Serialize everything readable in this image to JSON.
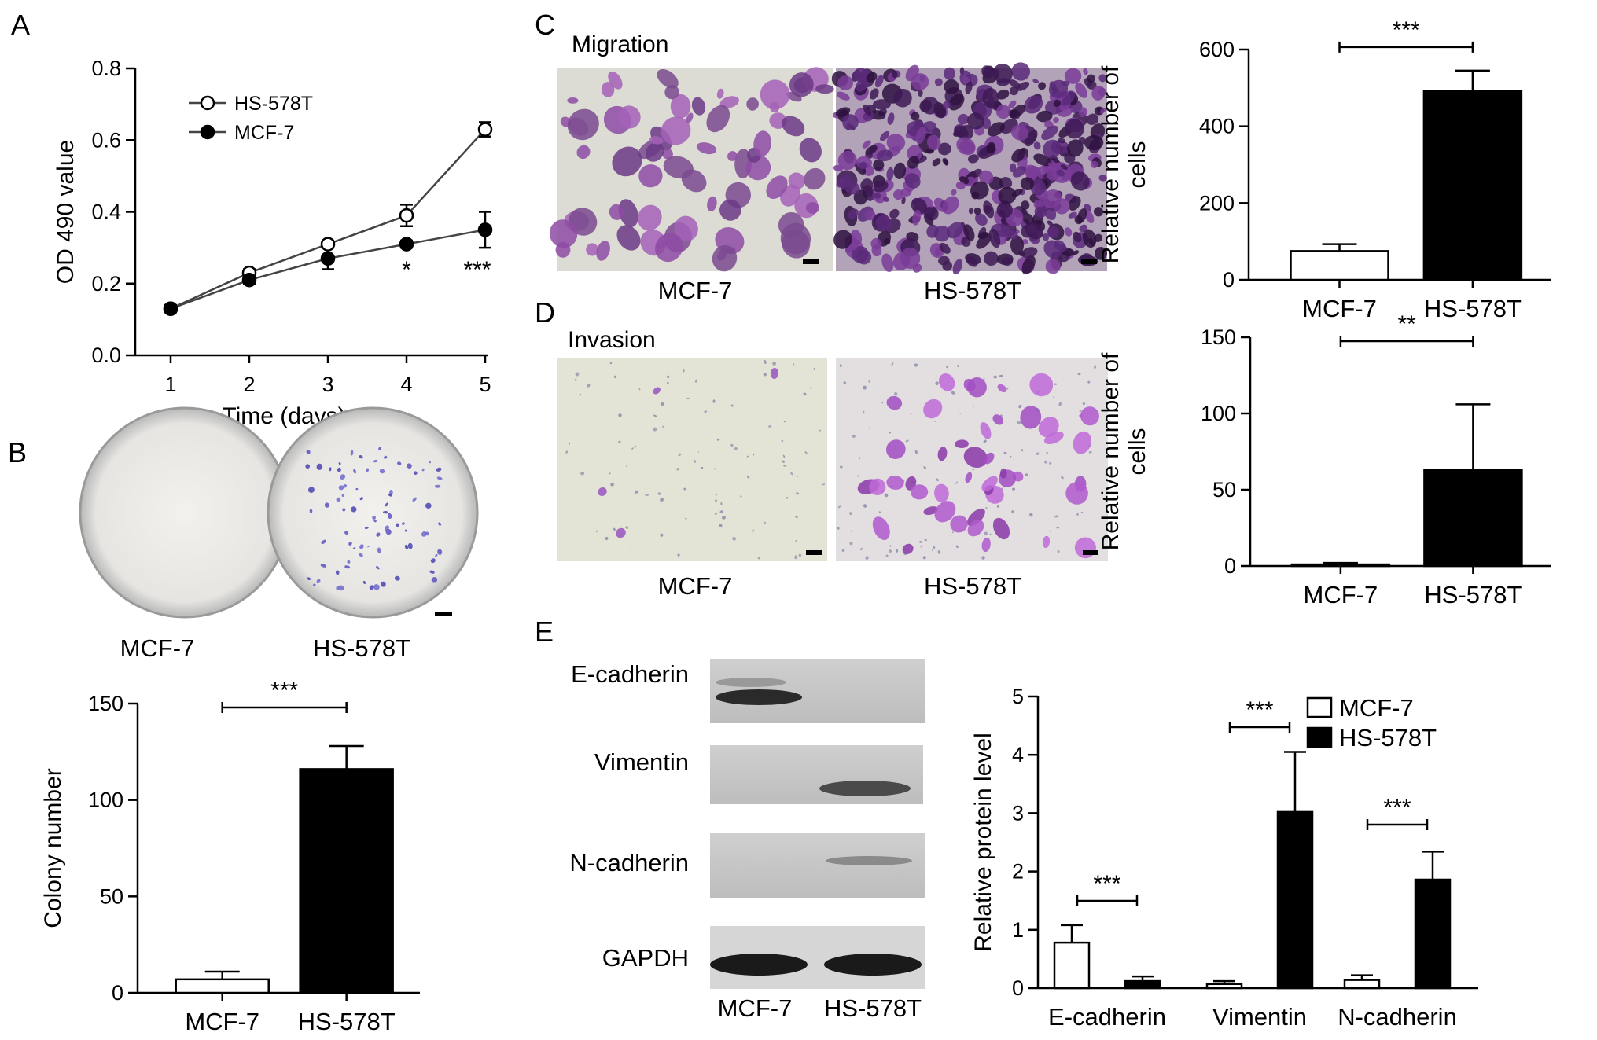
{
  "panels": {
    "A": {
      "label": "A"
    },
    "B": {
      "label": "B",
      "plate_labels": [
        "MCF-7",
        "HS-578T"
      ]
    },
    "C": {
      "label": "C",
      "title": "Migration",
      "image_labels": [
        "MCF-7",
        "HS-578T"
      ]
    },
    "D": {
      "label": "D",
      "title": "Invasion",
      "image_labels": [
        "MCF-7",
        "HS-578T"
      ]
    },
    "E": {
      "label": "E",
      "blot_rows": [
        "E-cadherin",
        "Vimentin",
        "N-cadherin",
        "GAPDH"
      ],
      "blot_lanes": [
        "MCF-7",
        "HS-578T"
      ]
    }
  },
  "colors": {
    "purple_stain": "#8a3aa8",
    "dark_purple": "#4a1d6a",
    "bar_dark": "#000000",
    "bar_light": "#ffffff"
  },
  "chart_data": [
    {
      "id": "A",
      "type": "line",
      "x": [
        1,
        2,
        3,
        4,
        5
      ],
      "series": [
        {
          "name": "HS-578T",
          "marker": "open-circle",
          "values": [
            0.13,
            0.23,
            0.31,
            0.39,
            0.63
          ],
          "errors": [
            0.01,
            0.01,
            0.01,
            0.03,
            0.02
          ]
        },
        {
          "name": "MCF-7",
          "marker": "filled-circle",
          "values": [
            0.13,
            0.21,
            0.27,
            0.31,
            0.35
          ],
          "errors": [
            0.01,
            0.01,
            0.03,
            0.01,
            0.05
          ]
        }
      ],
      "xlabel": "Time (days)",
      "ylabel": "OD 490 value",
      "ylim": [
        0,
        0.8
      ],
      "yticks": [
        "0.0",
        "0.2",
        "0.4",
        "0.6",
        "0.8"
      ],
      "xticks": [
        "1",
        "2",
        "3",
        "4",
        "5"
      ],
      "annotations": [
        {
          "x": 4,
          "text": "*"
        },
        {
          "x": 5,
          "text": "***"
        }
      ],
      "legend": "top-left"
    },
    {
      "id": "B",
      "type": "bar",
      "categories": [
        "MCF-7",
        "HS-578T"
      ],
      "values": [
        7,
        116
      ],
      "errors": [
        4,
        12
      ],
      "ylabel": "Colony number",
      "ylim": [
        0,
        150
      ],
      "yticks": [
        "0",
        "50",
        "100",
        "150"
      ],
      "significance": "***"
    },
    {
      "id": "C",
      "type": "bar",
      "categories": [
        "MCF-7",
        "HS-578T"
      ],
      "values": [
        75,
        493
      ],
      "errors": [
        18,
        52
      ],
      "ylabel": "Relative number of cells",
      "ylim": [
        0,
        600
      ],
      "yticks": [
        "0",
        "200",
        "400",
        "600"
      ],
      "significance": "***"
    },
    {
      "id": "D",
      "type": "bar",
      "categories": [
        "MCF-7",
        "HS-578T"
      ],
      "values": [
        1,
        63
      ],
      "errors": [
        1,
        43
      ],
      "ylabel": "Relative number of cells",
      "ylim": [
        0,
        150
      ],
      "yticks": [
        "0",
        "50",
        "100",
        "150"
      ],
      "significance": "**"
    },
    {
      "id": "E",
      "type": "bar",
      "categories": [
        "E-cadherin",
        "Vimentin",
        "N-cadherin"
      ],
      "series": [
        {
          "name": "MCF-7",
          "values": [
            0.78,
            0.07,
            0.14
          ],
          "errors": [
            0.3,
            0.05,
            0.08
          ]
        },
        {
          "name": "HS-578T",
          "values": [
            0.12,
            3.02,
            1.86
          ],
          "errors": [
            0.08,
            1.03,
            0.48
          ]
        }
      ],
      "ylabel": "Relative protein level",
      "ylim": [
        0,
        5
      ],
      "yticks": [
        "0",
        "1",
        "2",
        "3",
        "4",
        "5"
      ],
      "significance": [
        "***",
        "***",
        "***"
      ],
      "legend": "top-right"
    }
  ]
}
